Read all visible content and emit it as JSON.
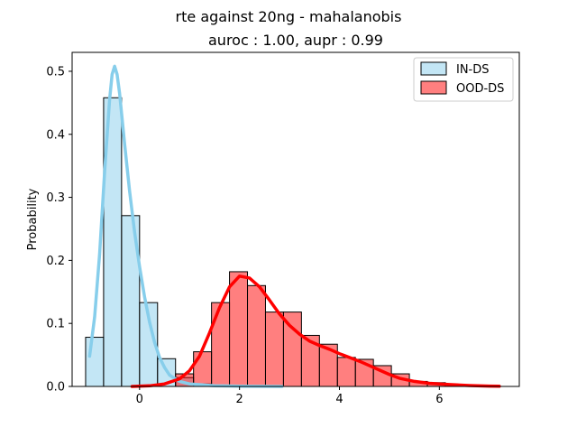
{
  "chart_data": {
    "type": "histogram",
    "title": "rte against 20ng  - mahalanobis",
    "subtitle": "auroc : 1.00, aupr : 0.99",
    "xlabel": "",
    "ylabel": "Probability",
    "xlim": [
      -1.35,
      7.6
    ],
    "ylim": [
      0,
      0.53
    ],
    "x_ticks": [
      0,
      2,
      4,
      6
    ],
    "y_ticks": [
      0.0,
      0.1,
      0.2,
      0.3,
      0.4,
      0.5
    ],
    "y_tick_labels": [
      "0.0",
      "0.1",
      "0.2",
      "0.3",
      "0.4",
      "0.5"
    ],
    "legend_position": "top-right",
    "colors": {
      "in_fill": "#87ceeb",
      "in_line": "#87ceeb",
      "ood_fill": "#ff0000",
      "ood_line": "#ff0000",
      "edge": "#000000"
    },
    "series": [
      {
        "name": "IN-DS",
        "bins": [
          {
            "x0": -1.08,
            "x1": -0.72,
            "value": 0.078
          },
          {
            "x0": -0.72,
            "x1": -0.36,
            "value": 0.458
          },
          {
            "x0": -0.36,
            "x1": 0.0,
            "value": 0.271
          },
          {
            "x0": 0.0,
            "x1": 0.36,
            "value": 0.133
          },
          {
            "x0": 0.36,
            "x1": 0.72,
            "value": 0.044
          },
          {
            "x0": 0.72,
            "x1": 1.08,
            "value": 0.014
          },
          {
            "x0": 1.08,
            "x1": 1.44,
            "value": 0.004
          }
        ],
        "kde": [
          [
            -1.0,
            0.048
          ],
          [
            -0.9,
            0.11
          ],
          [
            -0.8,
            0.21
          ],
          [
            -0.7,
            0.34
          ],
          [
            -0.6,
            0.455
          ],
          [
            -0.55,
            0.495
          ],
          [
            -0.5,
            0.508
          ],
          [
            -0.45,
            0.495
          ],
          [
            -0.4,
            0.465
          ],
          [
            -0.3,
            0.385
          ],
          [
            -0.2,
            0.31
          ],
          [
            -0.1,
            0.245
          ],
          [
            0.0,
            0.19
          ],
          [
            0.1,
            0.142
          ],
          [
            0.2,
            0.102
          ],
          [
            0.3,
            0.07
          ],
          [
            0.4,
            0.046
          ],
          [
            0.5,
            0.03
          ],
          [
            0.6,
            0.018
          ],
          [
            0.8,
            0.008
          ],
          [
            1.0,
            0.004
          ],
          [
            1.5,
            0.001
          ],
          [
            2.0,
            0.0004
          ],
          [
            2.85,
            0.0
          ]
        ]
      },
      {
        "name": "OOD-DS",
        "bins": [
          {
            "x0": 0.72,
            "x1": 1.08,
            "value": 0.02
          },
          {
            "x0": 1.08,
            "x1": 1.44,
            "value": 0.055
          },
          {
            "x0": 1.44,
            "x1": 1.8,
            "value": 0.133
          },
          {
            "x0": 1.8,
            "x1": 2.16,
            "value": 0.182
          },
          {
            "x0": 2.16,
            "x1": 2.52,
            "value": 0.16
          },
          {
            "x0": 2.52,
            "x1": 2.88,
            "value": 0.118
          },
          {
            "x0": 2.88,
            "x1": 3.24,
            "value": 0.118
          },
          {
            "x0": 3.24,
            "x1": 3.6,
            "value": 0.081
          },
          {
            "x0": 3.6,
            "x1": 3.96,
            "value": 0.067
          },
          {
            "x0": 3.96,
            "x1": 4.32,
            "value": 0.046
          },
          {
            "x0": 4.32,
            "x1": 4.68,
            "value": 0.043
          },
          {
            "x0": 4.68,
            "x1": 5.04,
            "value": 0.033
          },
          {
            "x0": 5.04,
            "x1": 5.4,
            "value": 0.02
          },
          {
            "x0": 5.4,
            "x1": 5.76,
            "value": 0.008
          },
          {
            "x0": 5.76,
            "x1": 6.12,
            "value": 0.006
          },
          {
            "x0": 6.12,
            "x1": 6.48,
            "value": 0.003
          },
          {
            "x0": 6.48,
            "x1": 6.84,
            "value": 0.001
          },
          {
            "x0": 6.84,
            "x1": 7.2,
            "value": 0.001
          }
        ],
        "kde": [
          [
            -0.15,
            0.0
          ],
          [
            0.2,
            0.001
          ],
          [
            0.5,
            0.004
          ],
          [
            0.8,
            0.012
          ],
          [
            1.0,
            0.025
          ],
          [
            1.2,
            0.048
          ],
          [
            1.4,
            0.085
          ],
          [
            1.6,
            0.125
          ],
          [
            1.8,
            0.158
          ],
          [
            2.0,
            0.175
          ],
          [
            2.2,
            0.172
          ],
          [
            2.4,
            0.158
          ],
          [
            2.6,
            0.137
          ],
          [
            2.8,
            0.115
          ],
          [
            3.0,
            0.097
          ],
          [
            3.2,
            0.083
          ],
          [
            3.4,
            0.072
          ],
          [
            3.6,
            0.065
          ],
          [
            3.8,
            0.059
          ],
          [
            4.0,
            0.052
          ],
          [
            4.2,
            0.046
          ],
          [
            4.4,
            0.04
          ],
          [
            4.6,
            0.033
          ],
          [
            4.8,
            0.026
          ],
          [
            5.0,
            0.019
          ],
          [
            5.2,
            0.013
          ],
          [
            5.5,
            0.008
          ],
          [
            5.8,
            0.005
          ],
          [
            6.2,
            0.003
          ],
          [
            6.6,
            0.0015
          ],
          [
            7.0,
            0.0006
          ],
          [
            7.2,
            0.0003
          ]
        ]
      }
    ]
  }
}
